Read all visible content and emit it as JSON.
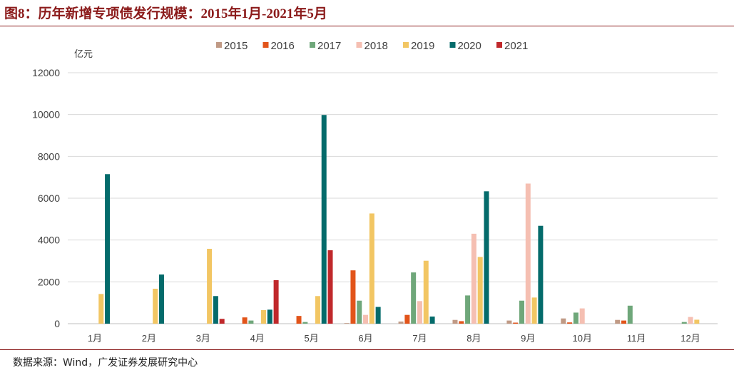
{
  "header": {
    "title": "图8：历年新增专项债发行规模：2015年1月-2021年5月"
  },
  "footer": {
    "source": "数据来源：Wind，广发证券发展研究中心"
  },
  "chart_data": {
    "type": "bar",
    "ylabel": "亿元",
    "ylim": [
      0,
      12000
    ],
    "yticks": [
      0,
      2000,
      4000,
      6000,
      8000,
      10000,
      12000
    ],
    "grid": true,
    "legend_position": "top",
    "categories": [
      "1月",
      "2月",
      "3月",
      "4月",
      "5月",
      "6月",
      "7月",
      "8月",
      "9月",
      "10月",
      "11月",
      "12月"
    ],
    "series": [
      {
        "name": "2015",
        "color": "#C09A85",
        "values": [
          0,
          0,
          0,
          0,
          0,
          30,
          100,
          180,
          150,
          250,
          180,
          0
        ]
      },
      {
        "name": "2016",
        "color": "#E2541A",
        "values": [
          0,
          0,
          0,
          300,
          370,
          2550,
          420,
          120,
          50,
          60,
          150,
          0
        ]
      },
      {
        "name": "2017",
        "color": "#6FA77A",
        "values": [
          0,
          0,
          0,
          150,
          80,
          1100,
          2450,
          1350,
          1100,
          530,
          860,
          80
        ]
      },
      {
        "name": "2018",
        "color": "#F5BFB2",
        "values": [
          0,
          0,
          0,
          0,
          0,
          420,
          1080,
          4300,
          6700,
          730,
          0,
          320
        ]
      },
      {
        "name": "2019",
        "color": "#F2C663",
        "values": [
          1420,
          1670,
          3580,
          650,
          1320,
          5270,
          3010,
          3190,
          1250,
          0,
          0,
          190
        ]
      },
      {
        "name": "2020",
        "color": "#046B6B",
        "values": [
          7150,
          2350,
          1320,
          670,
          9980,
          800,
          340,
          6330,
          4680,
          0,
          0,
          0
        ]
      },
      {
        "name": "2021",
        "color": "#C0282B",
        "values": [
          0,
          0,
          230,
          2080,
          3510,
          0,
          0,
          0,
          0,
          0,
          0,
          0
        ]
      }
    ]
  }
}
